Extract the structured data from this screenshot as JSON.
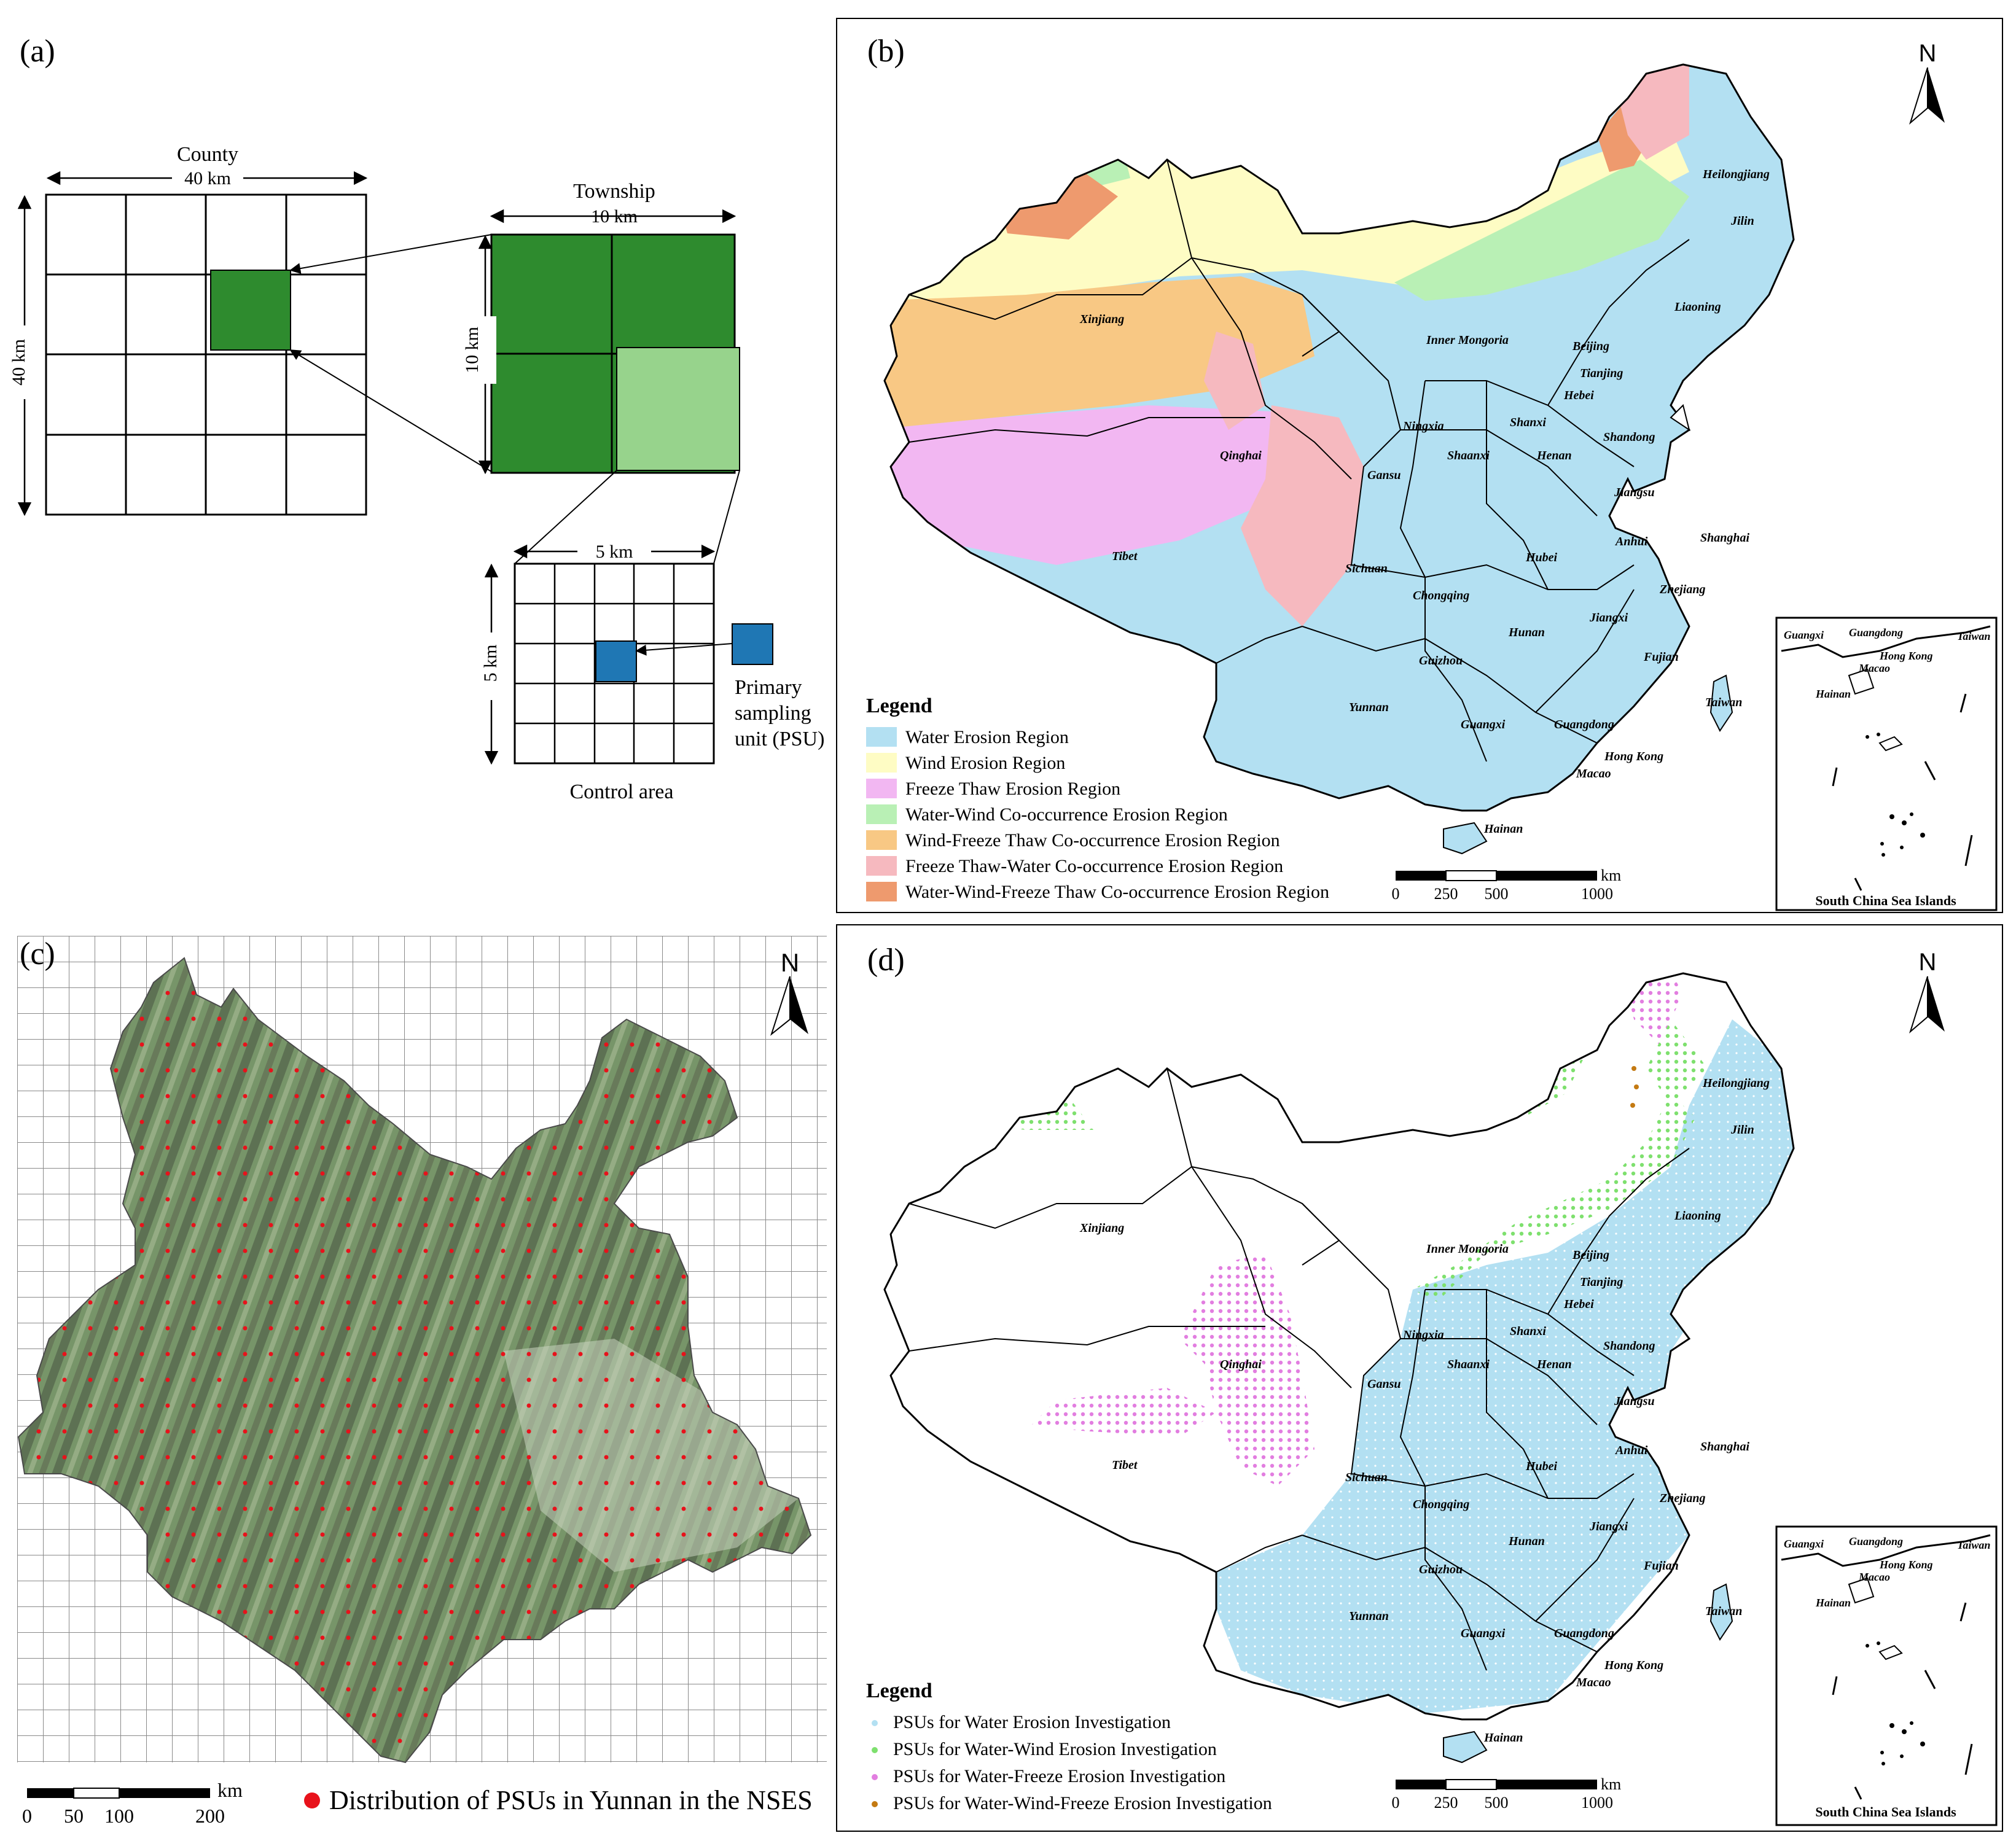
{
  "panel_a": {
    "label": "(a)",
    "county": {
      "title": "County",
      "width": "40 km",
      "height": "40 km"
    },
    "township": {
      "title": "Township",
      "width": "10 km",
      "height": "10 km"
    },
    "control": {
      "width": "5 km",
      "height": "5 km",
      "title": "Control area"
    },
    "psu_label_1": "Primary",
    "psu_label_2": "sampling",
    "psu_label_3": "unit (PSU)",
    "colors": {
      "dark_green": "#2e8b2e",
      "light_green": "#97d38c",
      "psu_blue": "#1f77b4"
    }
  },
  "panel_b": {
    "label": "(b)",
    "north": "N",
    "legend_title": "Legend",
    "legend": [
      {
        "label": "Water Erosion Region",
        "color": "#b3e0f2"
      },
      {
        "label": "Wind Erosion Region",
        "color": "#fefcc4"
      },
      {
        "label": "Freeze Thaw Erosion Region",
        "color": "#f2b7f2"
      },
      {
        "label": "Water-Wind Co-occurrence Erosion Region",
        "color": "#b9f0b5"
      },
      {
        "label": "Wind-Freeze Thaw Co-occurrence Erosion Region",
        "color": "#f8c884"
      },
      {
        "label": "Freeze Thaw-Water Co-occurrence Erosion Region",
        "color": "#f6b9bf"
      },
      {
        "label": "Water-Wind-Freeze Thaw Co-occurrence Erosion Region",
        "color": "#ee9a6e"
      }
    ],
    "scale_ticks": [
      "0",
      "250",
      "500",
      "1000"
    ],
    "scale_unit": "km",
    "inset_title": "South China Sea Islands",
    "inset_places": [
      "Guangxi",
      "Guangdong",
      "Taiwan",
      "Hong Kong",
      "Macao",
      "Hainan"
    ],
    "provinces": [
      "Heilongjiang",
      "Jilin",
      "Liaoning",
      "Xinjiang",
      "Inner Mongoria",
      "Beijing",
      "Tianjing",
      "Hebei",
      "Shanxi",
      "Shandong",
      "Ningxia",
      "Qinghai",
      "Gansu",
      "Shaanxi",
      "Henan",
      "Jiangsu",
      "Tibet",
      "Anhui",
      "Shanghai",
      "Sichuan",
      "Hubei",
      "Chongqing",
      "Zhejiang",
      "Jiangxi",
      "Hunan",
      "Guizhou",
      "Fujian",
      "Yunnan",
      "Guangxi",
      "Guangdong",
      "Taiwan",
      "Hong Kong",
      "Macao",
      "Hainan"
    ]
  },
  "panel_c": {
    "label": "(c)",
    "north": "N",
    "scale_ticks": [
      "0",
      "50",
      "100",
      "200"
    ],
    "scale_unit": "km",
    "psu_legend": "Distribution of PSUs in Yunnan in the NSES",
    "psu_color": "#e8121b"
  },
  "panel_d": {
    "label": "(d)",
    "north": "N",
    "legend_title": "Legend",
    "legend": [
      {
        "label": "PSUs for Water Erosion Investigation",
        "color": "#b3e0f2"
      },
      {
        "label": "PSUs for Water-Wind Erosion Investigation",
        "color": "#7ee06e"
      },
      {
        "label": "PSUs for Water-Freeze Erosion Investigation",
        "color": "#e27ee0"
      },
      {
        "label": "PSUs for Water-Wind-Freeze Erosion Investigation",
        "color": "#c47a12"
      }
    ],
    "scale_ticks": [
      "0",
      "250",
      "500",
      "1000"
    ],
    "scale_unit": "km",
    "inset_title": "South China Sea Islands",
    "inset_places": [
      "Guangxi",
      "Guangdong",
      "Taiwan",
      "Hong Kong",
      "Macao",
      "Hainan"
    ],
    "provinces": [
      "Heilongjiang",
      "Jilin",
      "Liaoning",
      "Xinjiang",
      "Inner Mongoria",
      "Beijing",
      "Tianjing",
      "Hebei",
      "Shanxi",
      "Shandong",
      "Ningxia",
      "Qinghai",
      "Gansu",
      "Shaanxi",
      "Henan",
      "Jiangsu",
      "Tibet",
      "Anhui",
      "Shanghai",
      "Sichuan",
      "Hubei",
      "Chongqing",
      "Zhejiang",
      "Jiangxi",
      "Hunan",
      "Guizhou",
      "Fujian",
      "Yunnan",
      "Guangxi",
      "Guangdong",
      "Taiwan",
      "Hong Kong",
      "Macao",
      "Hainan"
    ]
  }
}
